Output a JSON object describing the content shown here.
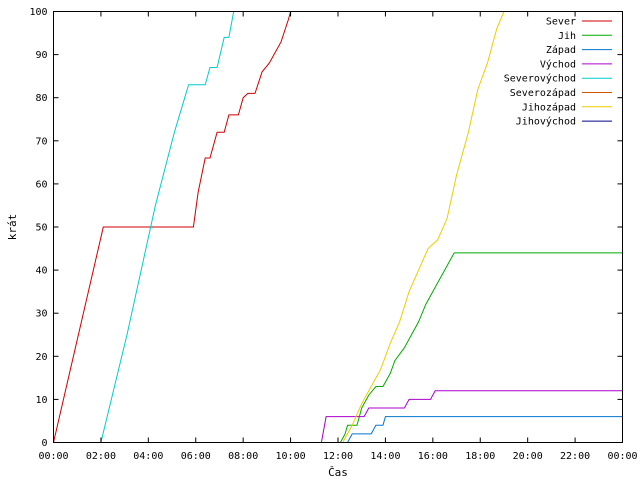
{
  "chart_data": {
    "type": "line",
    "title": "",
    "xlabel": "Čas",
    "ylabel": "krát",
    "x_unit": "hours",
    "xlim": [
      0,
      24
    ],
    "ylim": [
      0,
      100
    ],
    "x_ticks": [
      {
        "value": 0,
        "label": "00:00"
      },
      {
        "value": 2,
        "label": "02:00"
      },
      {
        "value": 4,
        "label": "04:00"
      },
      {
        "value": 6,
        "label": "06:00"
      },
      {
        "value": 8,
        "label": "08:00"
      },
      {
        "value": 10,
        "label": "10:00"
      },
      {
        "value": 12,
        "label": "12:00"
      },
      {
        "value": 14,
        "label": "14:00"
      },
      {
        "value": 16,
        "label": "16:00"
      },
      {
        "value": 18,
        "label": "18:00"
      },
      {
        "value": 20,
        "label": "20:00"
      },
      {
        "value": 22,
        "label": "22:00"
      },
      {
        "value": 24,
        "label": "00:00"
      }
    ],
    "y_ticks": [
      0,
      10,
      20,
      30,
      40,
      50,
      60,
      70,
      80,
      90,
      100
    ],
    "grid": false,
    "legend_position": "top-right",
    "series": [
      {
        "name": "Sever",
        "color": "#cc0000",
        "points": [
          [
            0.0,
            0
          ],
          [
            2.1,
            50
          ],
          [
            5.9,
            50
          ],
          [
            6.1,
            58
          ],
          [
            6.4,
            66
          ],
          [
            6.6,
            66
          ],
          [
            6.9,
            72
          ],
          [
            7.2,
            72
          ],
          [
            7.4,
            76
          ],
          [
            7.8,
            76
          ],
          [
            8.0,
            80
          ],
          [
            8.2,
            81
          ],
          [
            8.5,
            81
          ],
          [
            8.8,
            86
          ],
          [
            9.1,
            88
          ],
          [
            9.3,
            90
          ],
          [
            9.6,
            93
          ],
          [
            9.9,
            98
          ],
          [
            10.0,
            100
          ]
        ]
      },
      {
        "name": "Jih",
        "color": "#00aa00",
        "points": [
          [
            12.1,
            0
          ],
          [
            12.3,
            2
          ],
          [
            12.4,
            4
          ],
          [
            12.8,
            4
          ],
          [
            13.0,
            8
          ],
          [
            13.3,
            11
          ],
          [
            13.6,
            13
          ],
          [
            13.9,
            13
          ],
          [
            14.2,
            16
          ],
          [
            14.4,
            19
          ],
          [
            14.8,
            22
          ],
          [
            15.1,
            25
          ],
          [
            15.4,
            28
          ],
          [
            15.7,
            32
          ],
          [
            16.0,
            35
          ],
          [
            16.3,
            38
          ],
          [
            16.6,
            41
          ],
          [
            16.9,
            44
          ],
          [
            24.0,
            44
          ]
        ]
      },
      {
        "name": "Západ",
        "color": "#0077cc",
        "points": [
          [
            12.4,
            0
          ],
          [
            12.6,
            2
          ],
          [
            13.4,
            2
          ],
          [
            13.6,
            4
          ],
          [
            13.9,
            4
          ],
          [
            14.0,
            6
          ],
          [
            24.0,
            6
          ]
        ]
      },
      {
        "name": "Východ",
        "color": "#aa00cc",
        "points": [
          [
            11.3,
            0
          ],
          [
            11.5,
            6
          ],
          [
            13.1,
            6
          ],
          [
            13.3,
            8
          ],
          [
            14.8,
            8
          ],
          [
            15.0,
            10
          ],
          [
            15.9,
            10
          ],
          [
            16.1,
            12
          ],
          [
            24.0,
            12
          ]
        ]
      },
      {
        "name": "Severovýchod",
        "color": "#00cccc",
        "points": [
          [
            2.0,
            0
          ],
          [
            3.1,
            25
          ],
          [
            4.3,
            55
          ],
          [
            5.1,
            72
          ],
          [
            5.7,
            83
          ],
          [
            6.4,
            83
          ],
          [
            6.6,
            87
          ],
          [
            6.9,
            87
          ],
          [
            7.2,
            94
          ],
          [
            7.4,
            94
          ],
          [
            7.6,
            100
          ]
        ]
      },
      {
        "name": "Severozápad",
        "color": "#cc5500",
        "points": []
      },
      {
        "name": "Jihozápad",
        "color": "#eecc00",
        "points": [
          [
            12.2,
            0
          ],
          [
            12.6,
            4
          ],
          [
            13.0,
            9
          ],
          [
            13.4,
            13
          ],
          [
            13.8,
            17
          ],
          [
            14.2,
            23
          ],
          [
            14.6,
            28
          ],
          [
            15.0,
            35
          ],
          [
            15.4,
            40
          ],
          [
            15.8,
            45
          ],
          [
            16.2,
            47
          ],
          [
            16.6,
            52
          ],
          [
            17.0,
            62
          ],
          [
            17.5,
            72
          ],
          [
            17.9,
            82
          ],
          [
            18.3,
            88
          ],
          [
            18.7,
            96
          ],
          [
            19.0,
            100
          ]
        ]
      },
      {
        "name": "Jihovýchod",
        "color": "#000088",
        "points": []
      }
    ]
  }
}
